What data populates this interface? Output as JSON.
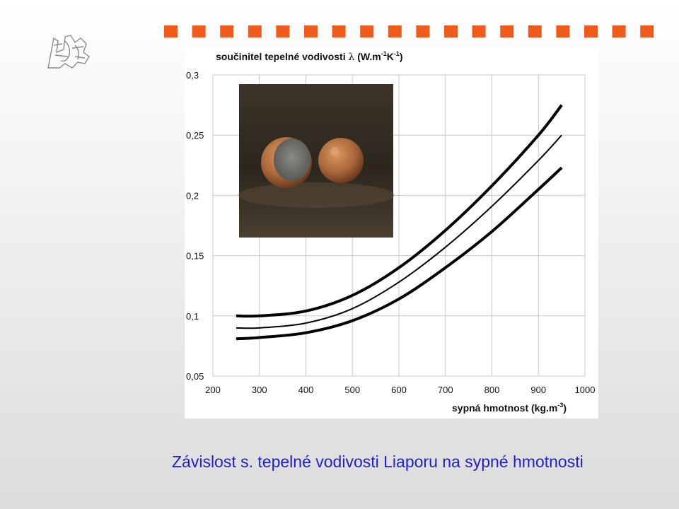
{
  "slide": {
    "caption": "Závislost s. tepelné vodivosti Liaporu na sypné hmotnosti",
    "accent_color": "#f05a1a",
    "caption_color": "#1f1fd0",
    "header_decoration": "orange-square-stripe",
    "logo_icon": "university-lion-emblem-icon",
    "photo_icon": "expanded-clay-granules-photo"
  },
  "chart_data": {
    "type": "line",
    "ylabel_main": "součinitel tepelné vodivosti ",
    "ylabel_lambda": "λ",
    "ylabel_unit_a": " (W.m",
    "ylabel_sup1": "-1",
    "ylabel_unit_b": "K",
    "ylabel_sup2": "-1",
    "ylabel_unit_c": ")",
    "xlabel_main": "sypná hmotnost (kg.m",
    "xlabel_sup": "-3",
    "xlabel_end": ")",
    "xlim": [
      200,
      1000
    ],
    "ylim": [
      0.05,
      0.3
    ],
    "xticks": [
      "200",
      "300",
      "400",
      "500",
      "600",
      "700",
      "800",
      "900",
      "1000"
    ],
    "yticks": [
      "0,3",
      "0,25",
      "0,2",
      "0,15",
      "0,1",
      "0,05"
    ],
    "grid": true,
    "series": [
      {
        "style": "thick",
        "x": [
          250,
          300,
          400,
          500,
          600,
          700,
          800,
          900,
          950
        ],
        "y": [
          0.1,
          0.1,
          0.104,
          0.117,
          0.14,
          0.171,
          0.208,
          0.25,
          0.275
        ]
      },
      {
        "style": "thin",
        "x": [
          250,
          300,
          400,
          500,
          600,
          700,
          800,
          900,
          950
        ],
        "y": [
          0.09,
          0.09,
          0.094,
          0.106,
          0.128,
          0.157,
          0.191,
          0.229,
          0.25
        ]
      },
      {
        "style": "thick",
        "x": [
          250,
          300,
          400,
          500,
          600,
          700,
          800,
          900,
          950
        ],
        "y": [
          0.081,
          0.082,
          0.086,
          0.096,
          0.114,
          0.14,
          0.17,
          0.205,
          0.223
        ]
      }
    ]
  }
}
